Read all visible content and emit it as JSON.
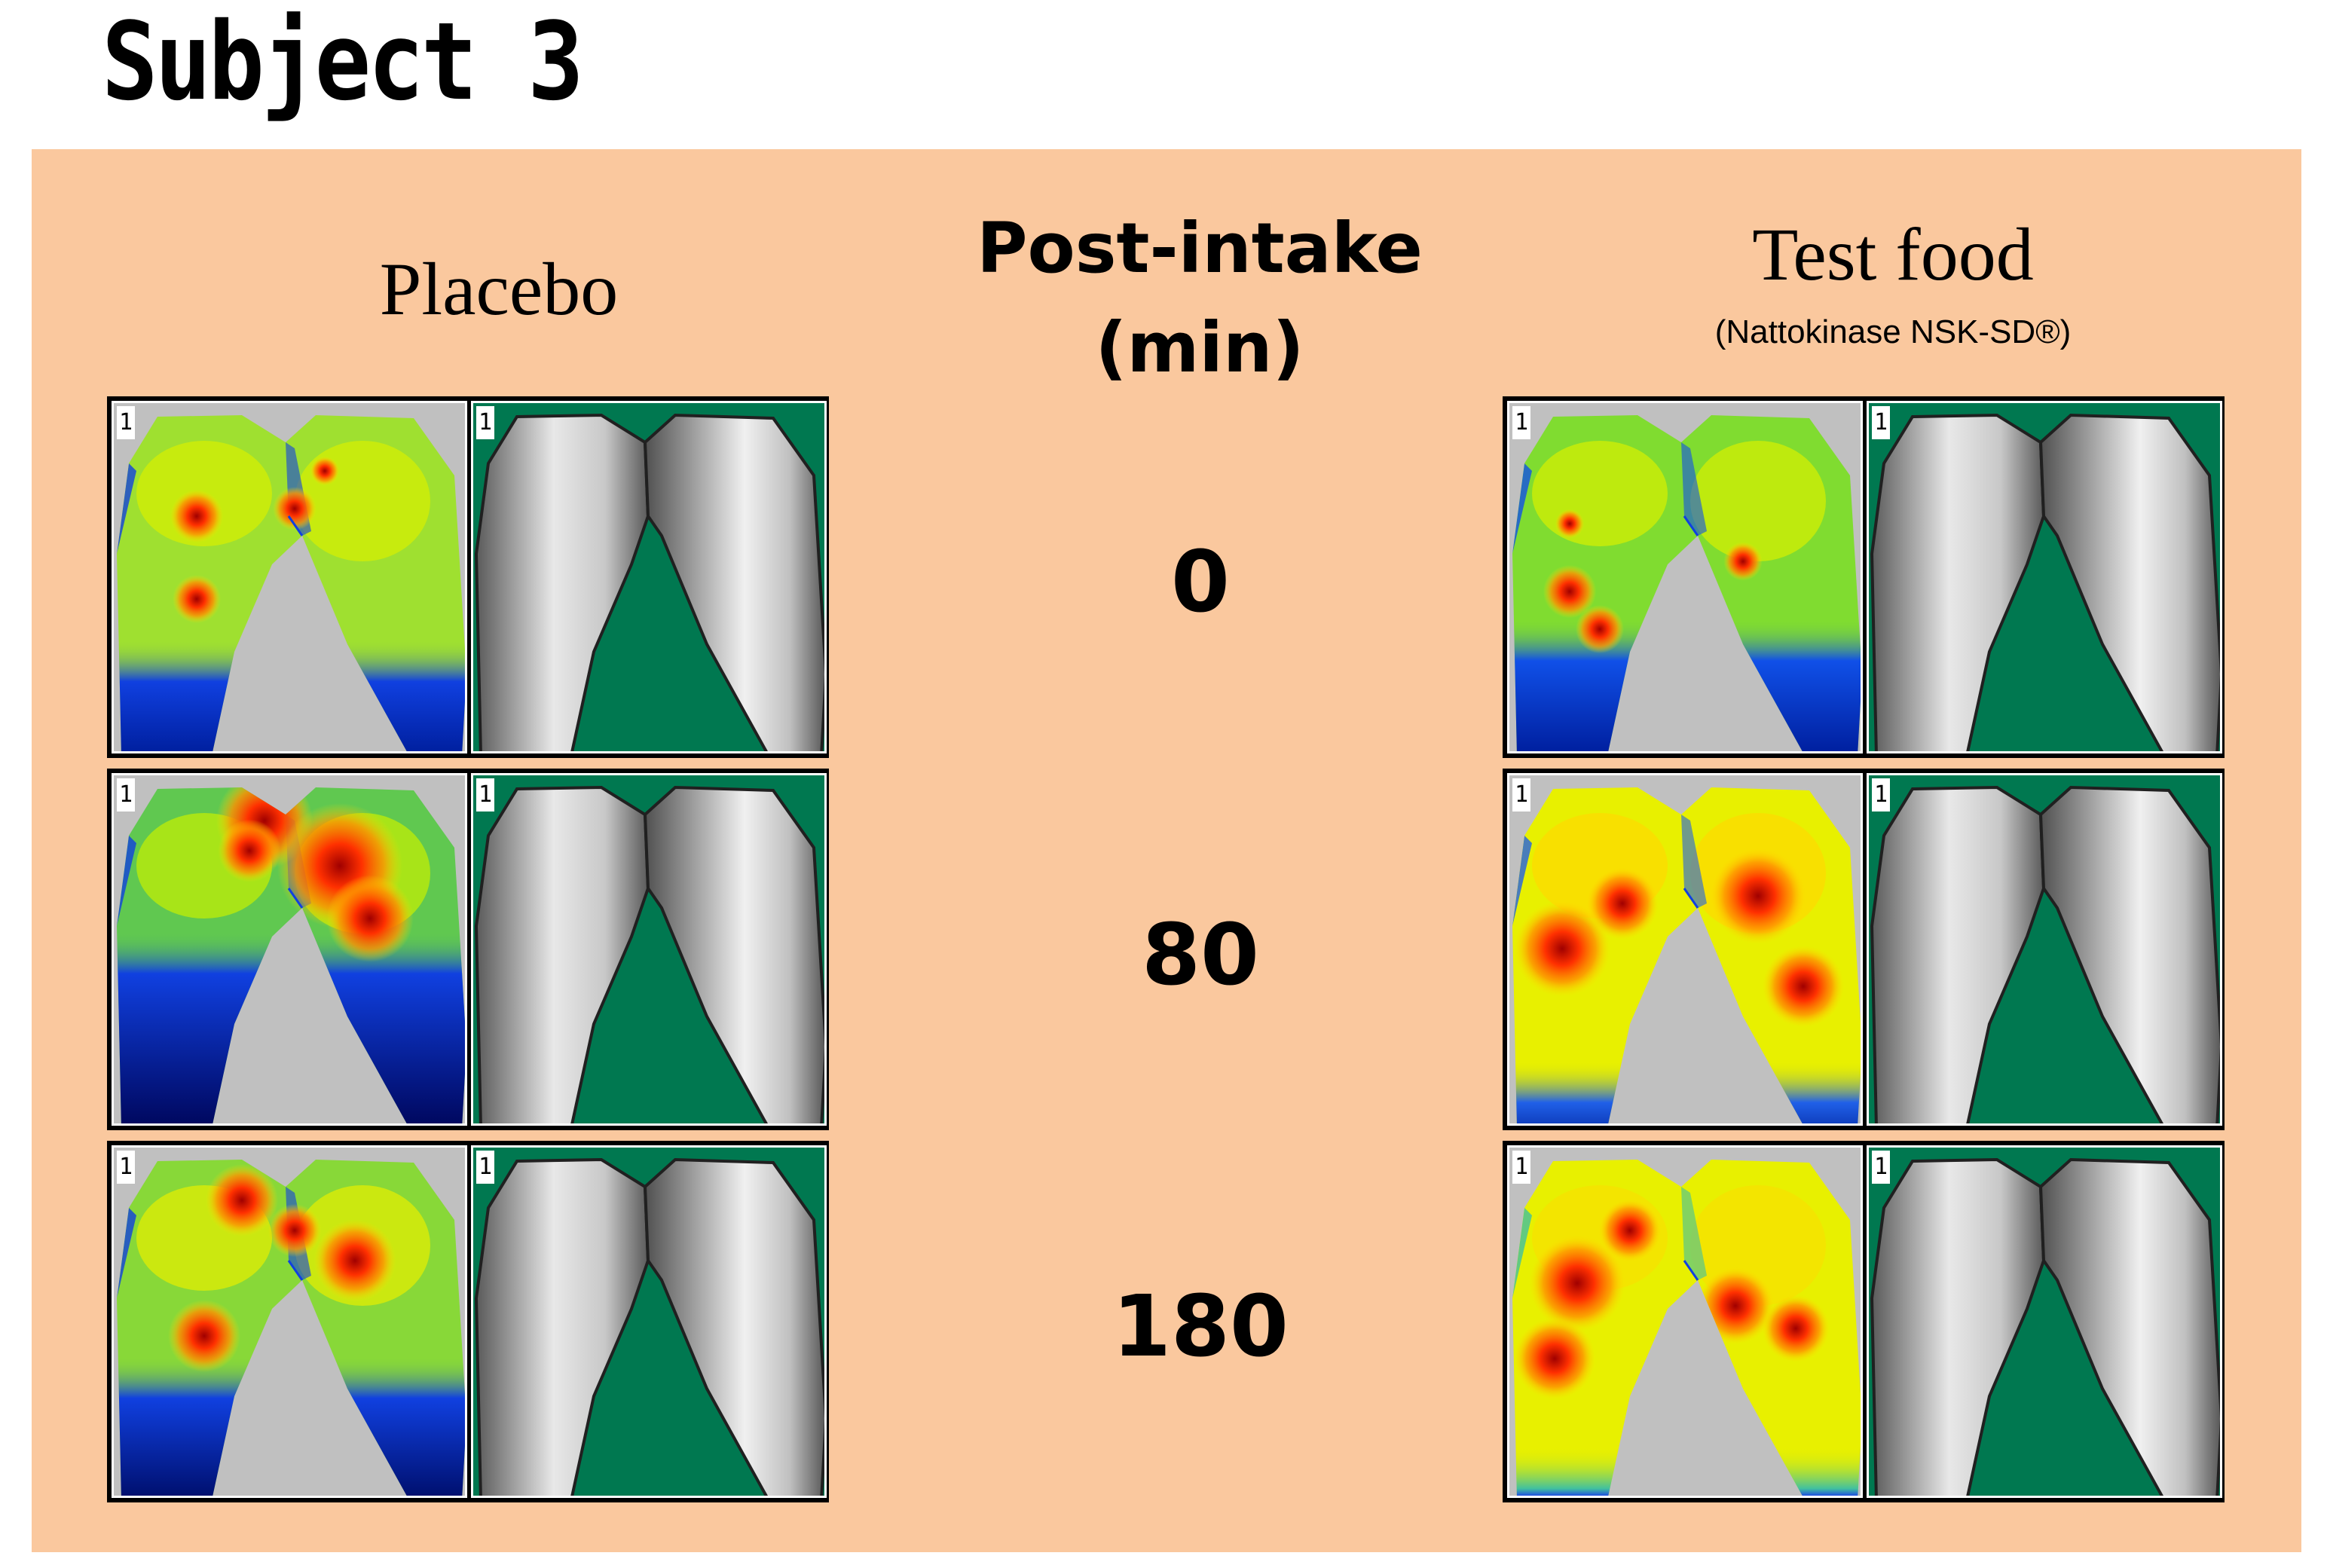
{
  "title": "Subject 3",
  "columns": {
    "placebo": "Placebo",
    "center_header": [
      "Post-intake",
      "(min)"
    ],
    "test_food": "Test food",
    "test_food_sub": "(Nattokinase NSK-SD®)"
  },
  "times": [
    "0",
    "80",
    "180"
  ],
  "image_marker": "1",
  "colors": {
    "panel_background": "#fac89e",
    "thermal_background": "#c0c0c0",
    "shape_background": "#007850"
  },
  "thermal_images": [
    {
      "group": "placebo",
      "time": "0",
      "dominant": "green-yellow",
      "hotspots": "few-red",
      "cold_edge": "blue"
    },
    {
      "group": "test-food",
      "time": "0",
      "dominant": "green-yellow",
      "hotspots": "few-red",
      "cold_edge": "blue"
    },
    {
      "group": "placebo",
      "time": "80",
      "dominant": "green-blue",
      "hotspots": "red",
      "cold_edge": "dark-blue"
    },
    {
      "group": "test-food",
      "time": "80",
      "dominant": "yellow",
      "hotspots": "many-red",
      "cold_edge": "blue"
    },
    {
      "group": "placebo",
      "time": "180",
      "dominant": "green-yellow",
      "hotspots": "red",
      "cold_edge": "blue"
    },
    {
      "group": "test-food",
      "time": "180",
      "dominant": "yellow",
      "hotspots": "many-red",
      "cold_edge": "green"
    }
  ]
}
